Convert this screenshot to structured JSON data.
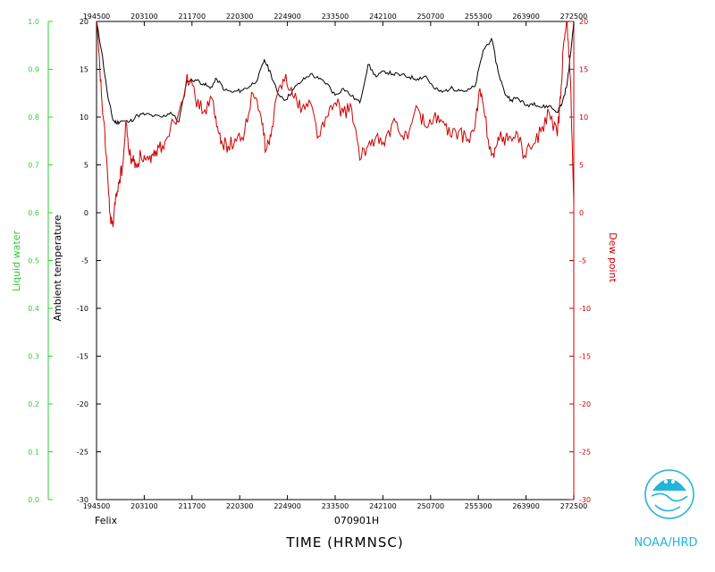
{
  "chart_data": {
    "type": "line",
    "x_ticks": [
      "194500",
      "203100",
      "211700",
      "220300",
      "224900",
      "233500",
      "242100",
      "250700",
      "255300",
      "263900",
      "272500"
    ],
    "xlabel": "TIME (HRMNSC)",
    "date_label": "070901H",
    "storm_label": "Felix",
    "logo_text": "NOAA/HRD",
    "y_left_outer": {
      "label": "Liquid water",
      "ticks": [
        "0.0",
        "0.1",
        "0.2",
        "0.3",
        "0.4",
        "0.5",
        "0.6",
        "0.7",
        "0.8",
        "0.9",
        "1.0"
      ],
      "ylim": [
        0.0,
        1.0
      ],
      "color": "#33cc33"
    },
    "y_left_inner": {
      "label": "Ambient temperature",
      "ticks": [
        "-30",
        "-25",
        "-20",
        "-15",
        "-10",
        "-5",
        "0",
        "5",
        "10",
        "15",
        "20"
      ],
      "ylim": [
        -30,
        20
      ],
      "color": "#000000"
    },
    "y_right": {
      "label": "Dew point",
      "ticks": [
        "-30",
        "-25",
        "-20",
        "-15",
        "-10",
        "-5",
        "0",
        "5",
        "10",
        "15",
        "20"
      ],
      "ylim": [
        -30,
        20
      ],
      "color": "#cc0000"
    },
    "series": [
      {
        "name": "Ambient temperature",
        "color": "#000000",
        "x": [
          0,
          0.3,
          0.7,
          1.0,
          1.2,
          1.5,
          2.0,
          2.5,
          3.0,
          3.5,
          4.0,
          4.5,
          5.0,
          5.5,
          6.0,
          6.5,
          6.9,
          7.3,
          7.8,
          8.3,
          8.8,
          9.3,
          9.8,
          10.2,
          10.6,
          11.0,
          11.5,
          12.0,
          12.5,
          13.0,
          13.5,
          14.0,
          14.5,
          15.0,
          15.5,
          16.0,
          16.5,
          17.0,
          17.5,
          18.0,
          18.5,
          19.0,
          19.5,
          20.0,
          20.5,
          21.0,
          21.5,
          22.0,
          22.5,
          23.0,
          23.5,
          24.0,
          24.4,
          24.8,
          25.2,
          25.6,
          26.1,
          26.6,
          27.0,
          27.5,
          28.0,
          28.3,
          28.6,
          28.8,
          29.0
        ],
        "y": [
          20.0,
          17.0,
          12.0,
          9.7,
          9.4,
          9.6,
          9.5,
          10.2,
          10.3,
          10.1,
          10.0,
          10.5,
          9.5,
          13.8,
          13.9,
          13.5,
          13.0,
          14.0,
          12.8,
          12.6,
          12.8,
          13.2,
          14.0,
          16.0,
          14.5,
          12.5,
          11.8,
          13.0,
          13.8,
          14.5,
          14.0,
          13.5,
          12.3,
          13.0,
          12.2,
          11.5,
          15.5,
          14.2,
          14.8,
          14.5,
          14.4,
          14.2,
          14.0,
          14.3,
          13.0,
          12.6,
          13.0,
          12.9,
          12.7,
          13.2,
          17.0,
          18.2,
          14.8,
          12.5,
          11.8,
          12.0,
          11.2,
          11.5,
          11.0,
          11.2,
          10.5,
          11.5,
          13.5,
          16.5,
          20.0
        ]
      },
      {
        "name": "Dew point",
        "color": "#cc0000",
        "x": [
          0,
          0.2,
          0.4,
          0.6,
          0.8,
          1.0,
          1.2,
          1.4,
          1.6,
          1.8,
          2.0,
          2.2,
          2.4,
          2.7,
          3.0,
          3.3,
          3.6,
          4.0,
          4.5,
          5.0,
          5.5,
          6.0,
          6.5,
          7.0,
          7.3,
          7.6,
          8.0,
          8.5,
          9.0,
          9.5,
          10.0,
          10.3,
          10.6,
          11.0,
          11.5,
          12.0,
          12.5,
          13.0,
          13.5,
          14.0,
          14.5,
          15.0,
          15.5,
          16.0,
          16.5,
          17.0,
          17.5,
          18.0,
          18.5,
          19.0,
          19.5,
          20.0,
          20.5,
          21.0,
          21.5,
          22.0,
          22.5,
          23.0,
          23.3,
          23.6,
          24.0,
          24.3,
          24.6,
          25.0,
          25.5,
          26.0,
          26.5,
          27.0,
          27.5,
          28.0,
          28.2,
          28.4,
          28.6,
          28.8,
          29.0
        ],
        "y": [
          20.0,
          15.0,
          10.0,
          6.0,
          0.0,
          -1.5,
          2.0,
          3.5,
          5.0,
          9.5,
          6.0,
          5.5,
          5.0,
          6.0,
          5.5,
          5.2,
          6.5,
          7.0,
          9.0,
          10.5,
          14.5,
          12.0,
          10.5,
          12.0,
          9.0,
          7.5,
          7.0,
          7.5,
          8.5,
          12.5,
          10.0,
          6.5,
          8.0,
          12.5,
          14.5,
          12.0,
          11.0,
          11.5,
          8.0,
          10.0,
          11.5,
          10.5,
          11.0,
          5.5,
          7.0,
          8.0,
          7.0,
          9.5,
          8.0,
          8.5,
          11.0,
          9.0,
          10.0,
          9.5,
          8.0,
          8.5,
          7.5,
          9.0,
          13.0,
          10.0,
          6.0,
          7.0,
          8.0,
          7.5,
          8.5,
          6.0,
          7.0,
          8.5,
          10.5,
          8.0,
          12.0,
          18.0,
          20.0,
          14.0,
          1.0
        ]
      }
    ]
  }
}
